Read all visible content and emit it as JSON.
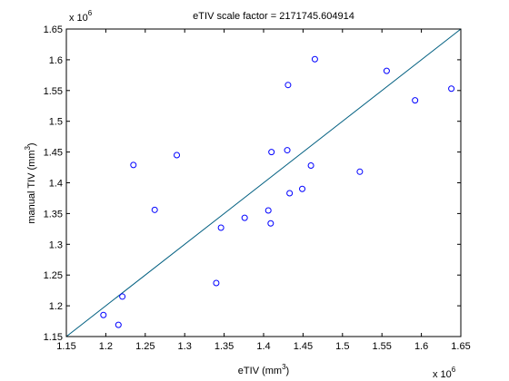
{
  "chart_data": {
    "type": "scatter",
    "title": "eTIV scale factor = 2171745.604914",
    "xlabel": {
      "base": "eTIV (mm",
      "sup": "3",
      "end": ")"
    },
    "ylabel": {
      "base": "manual TIV (mm",
      "sup": "3",
      "end": ")"
    },
    "xlim": [
      1.15,
      1.65
    ],
    "ylim": [
      1.15,
      1.65
    ],
    "x_ticks": [
      "1.15",
      "1.2",
      "1.25",
      "1.3",
      "1.35",
      "1.4",
      "1.45",
      "1.5",
      "1.55",
      "1.6",
      "1.65"
    ],
    "y_ticks": [
      "1.15",
      "1.2",
      "1.25",
      "1.3",
      "1.35",
      "1.4",
      "1.45",
      "1.5",
      "1.55",
      "1.6",
      "1.65"
    ],
    "x_multiplier": {
      "base": "x 10",
      "exp": "6"
    },
    "y_multiplier": {
      "base": "x 10",
      "exp": "6"
    },
    "grid": false,
    "marker_color": "#0000ff",
    "line_color": "#005f80",
    "fit_line": {
      "x": [
        1.15,
        1.65
      ],
      "y": [
        1.15,
        1.65
      ]
    },
    "points": [
      {
        "x": 1.197,
        "y": 1.185
      },
      {
        "x": 1.216,
        "y": 1.169
      },
      {
        "x": 1.221,
        "y": 1.215
      },
      {
        "x": 1.235,
        "y": 1.429
      },
      {
        "x": 1.262,
        "y": 1.356
      },
      {
        "x": 1.29,
        "y": 1.445
      },
      {
        "x": 1.34,
        "y": 1.237
      },
      {
        "x": 1.346,
        "y": 1.327
      },
      {
        "x": 1.376,
        "y": 1.343
      },
      {
        "x": 1.406,
        "y": 1.355
      },
      {
        "x": 1.409,
        "y": 1.334
      },
      {
        "x": 1.41,
        "y": 1.45
      },
      {
        "x": 1.43,
        "y": 1.453
      },
      {
        "x": 1.431,
        "y": 1.559
      },
      {
        "x": 1.433,
        "y": 1.383
      },
      {
        "x": 1.449,
        "y": 1.39
      },
      {
        "x": 1.46,
        "y": 1.428
      },
      {
        "x": 1.465,
        "y": 1.601
      },
      {
        "x": 1.522,
        "y": 1.418
      },
      {
        "x": 1.556,
        "y": 1.582
      },
      {
        "x": 1.592,
        "y": 1.534
      },
      {
        "x": 1.638,
        "y": 1.553
      }
    ]
  }
}
